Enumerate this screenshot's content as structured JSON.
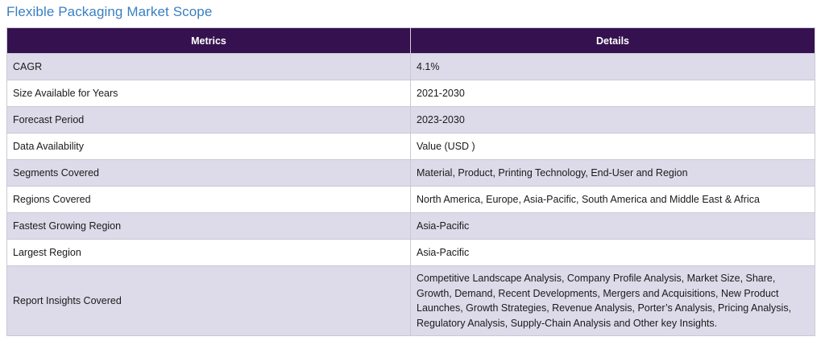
{
  "title": "Flexible Packaging Market Scope",
  "table": {
    "headers": [
      "Metrics",
      "Details"
    ],
    "rows": [
      {
        "metric": "CAGR",
        "detail": "4.1%"
      },
      {
        "metric": "Size Available for Years",
        "detail": "2021-2030"
      },
      {
        "metric": "Forecast Period",
        "detail": "2023-2030"
      },
      {
        "metric": "Data Availability",
        "detail": "Value (USD )"
      },
      {
        "metric": "Segments Covered",
        "detail": "Material, Product, Printing Technology, End-User  and Region"
      },
      {
        "metric": "Regions Covered",
        "detail": "North America, Europe, Asia-Pacific, South America and Middle East & Africa"
      },
      {
        "metric": "Fastest Growing Region",
        "detail": "Asia-Pacific"
      },
      {
        "metric": "Largest Region",
        "detail": "Asia-Pacific"
      },
      {
        "metric": "Report Insights Covered",
        "detail": "Competitive Landscape Analysis, Company Profile Analysis, Market Size, Share, Growth, Demand, Recent Developments, Mergers and Acquisitions, New Product Launches, Growth Strategies, Revenue Analysis, Porter’s Analysis, Pricing Analysis, Regulatory Analysis, Supply-Chain Analysis and Other key Insights."
      }
    ]
  }
}
